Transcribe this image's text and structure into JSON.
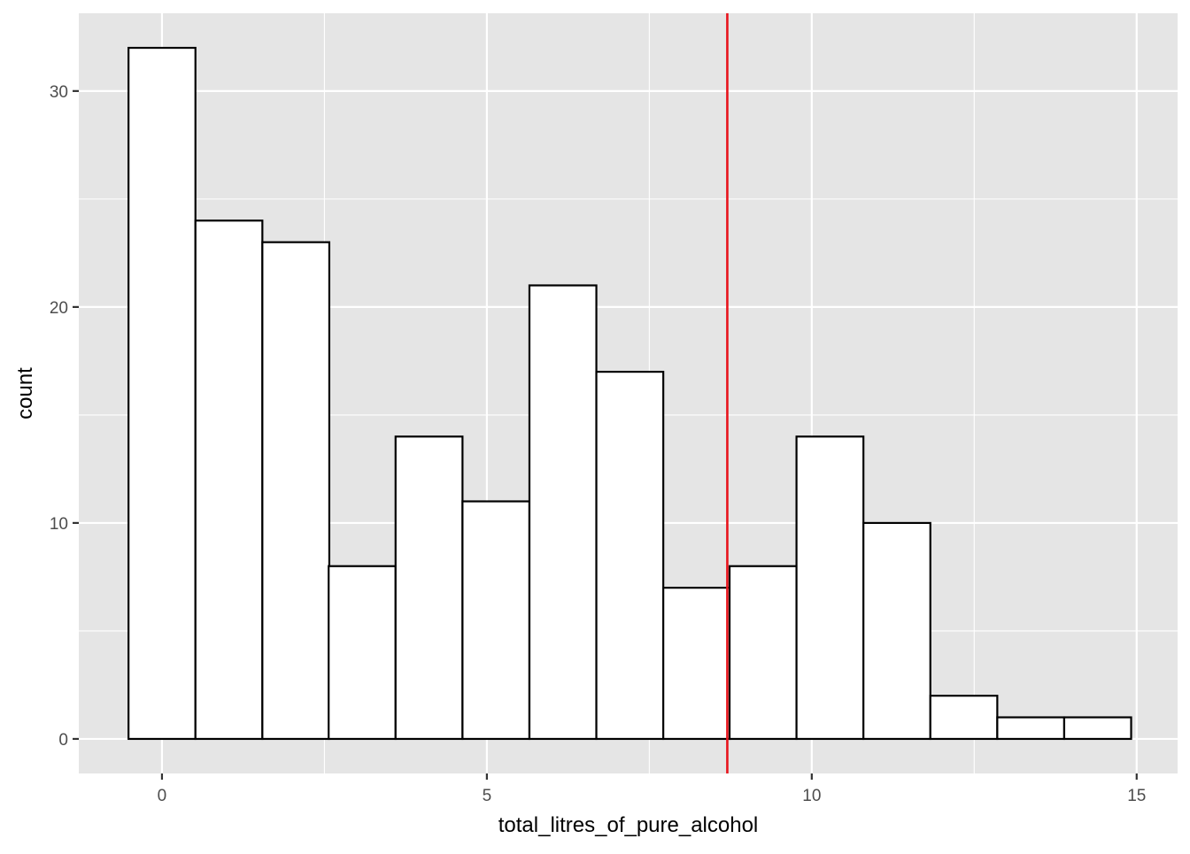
{
  "chart_data": {
    "type": "bar",
    "subtype": "histogram",
    "title": "",
    "xlabel": "total_litres_of_pure_alcohol",
    "ylabel": "count",
    "xlim": [
      -1.28,
      15.63
    ],
    "ylim": [
      -1.6,
      33.6
    ],
    "x_ticks": [
      {
        "value": 0,
        "label": "0"
      },
      {
        "value": 5,
        "label": "5"
      },
      {
        "value": 10,
        "label": "10"
      },
      {
        "value": 15,
        "label": "15"
      }
    ],
    "y_ticks": [
      {
        "value": 0,
        "label": "0"
      },
      {
        "value": 10,
        "label": "10"
      },
      {
        "value": 20,
        "label": "20"
      },
      {
        "value": 30,
        "label": "30"
      }
    ],
    "x_minor_breaks": [
      2.5,
      7.5,
      12.5
    ],
    "y_minor_breaks": [
      5,
      15,
      25
    ],
    "bin_width": 1.03,
    "bins": [
      {
        "center": 0.0,
        "count": 32
      },
      {
        "center": 1.03,
        "count": 24
      },
      {
        "center": 2.06,
        "count": 23
      },
      {
        "center": 3.08,
        "count": 8
      },
      {
        "center": 4.11,
        "count": 14
      },
      {
        "center": 5.14,
        "count": 11
      },
      {
        "center": 6.17,
        "count": 21
      },
      {
        "center": 7.2,
        "count": 17
      },
      {
        "center": 8.23,
        "count": 7
      },
      {
        "center": 9.25,
        "count": 8
      },
      {
        "center": 10.28,
        "count": 14
      },
      {
        "center": 11.31,
        "count": 10
      },
      {
        "center": 12.34,
        "count": 2
      },
      {
        "center": 13.37,
        "count": 1
      },
      {
        "center": 14.4,
        "count": 1
      }
    ],
    "reference_line": {
      "x": 8.7,
      "color": "#e8141c"
    },
    "bar_fill": "#ffffff",
    "bar_outline": "#000000",
    "panel_background": "#e5e5e5",
    "grid_color": "#ffffff",
    "grid": true,
    "legend": "none"
  }
}
